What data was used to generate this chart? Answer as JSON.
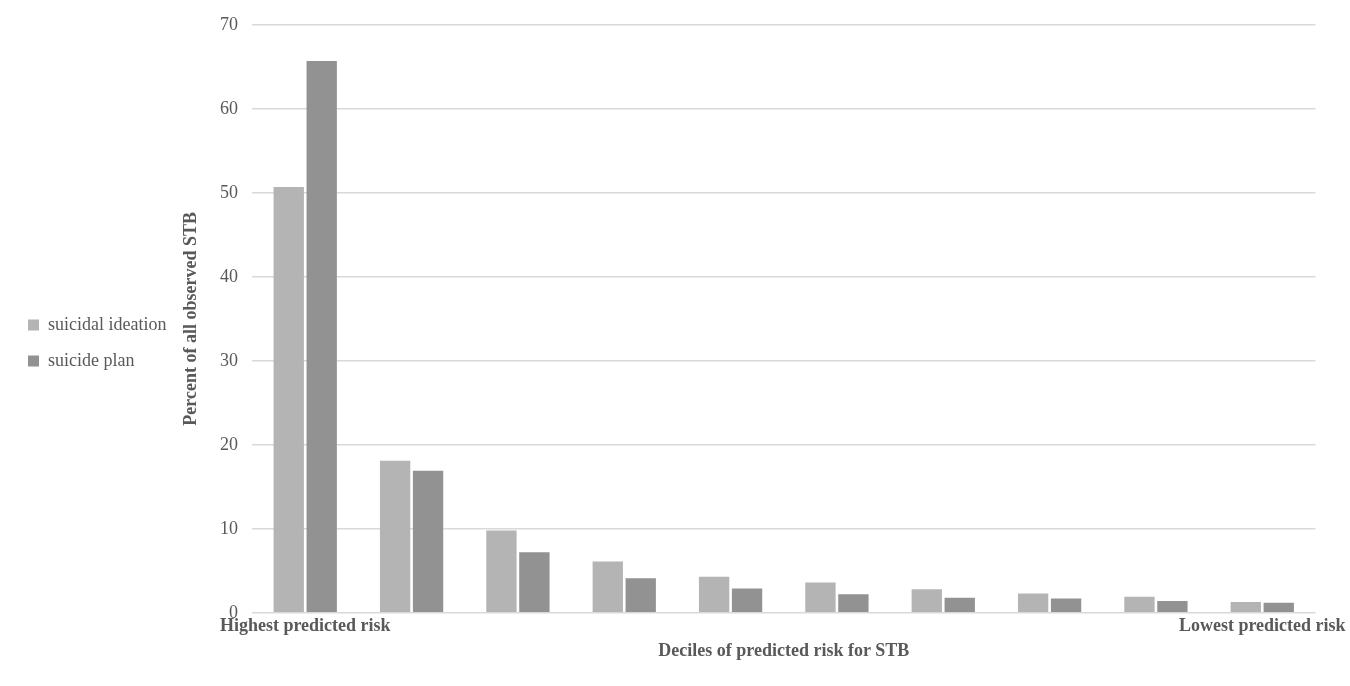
{
  "chart_data": {
    "type": "bar",
    "xlabel": "Deciles of predicted risk for STB",
    "ylabel": "Percent of all observed STB",
    "categories": [
      "Highest predicted risk",
      null,
      null,
      null,
      null,
      null,
      null,
      null,
      null,
      "Lowest predicted risk"
    ],
    "series": [
      {
        "name": "suicidal ideation",
        "color": "#b4b4b4",
        "values": [
          50.7,
          18.1,
          9.8,
          6.1,
          4.3,
          3.6,
          2.8,
          2.3,
          1.9,
          1.3
        ]
      },
      {
        "name": "suicide plan",
        "color": "#929292",
        "values": [
          65.7,
          16.9,
          7.2,
          4.1,
          2.9,
          2.2,
          1.8,
          1.7,
          1.4,
          1.2
        ]
      }
    ],
    "ylim": [
      0,
      70
    ],
    "yticks": [
      0,
      10,
      20,
      30,
      40,
      50,
      60,
      70
    ],
    "grid": "y",
    "legend": "left"
  }
}
